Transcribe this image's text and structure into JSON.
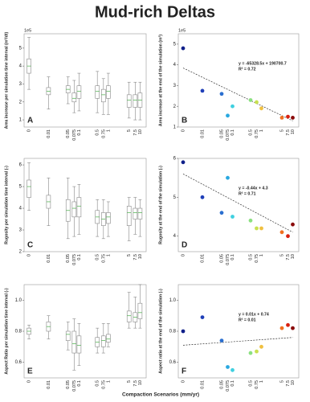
{
  "title": "Mud-rich Deltas",
  "xlabel": "Compaction Scenarios (mm/yr)",
  "chart_data": [
    {
      "type": "box",
      "panel_label": "A",
      "ylabel": "Area increase per simulation time interval (m²/dt)",
      "offset_text": "1e5",
      "categories": [
        "0",
        "0.01",
        "0.05",
        "0.075",
        "0.1",
        "0.5",
        "0.75",
        "1",
        "5",
        "7.5",
        "10"
      ],
      "ylim": [
        0.6,
        5.8
      ],
      "yticks": [
        1,
        2,
        3,
        4,
        5
      ],
      "boxes": [
        [
          2.7,
          3.6,
          4.0,
          4.4,
          5.6
        ],
        [
          1.6,
          2.4,
          2.6,
          2.8,
          3.4
        ],
        [
          1.9,
          2.5,
          2.7,
          2.9,
          3.4
        ],
        [
          1.4,
          2.0,
          2.2,
          2.5,
          3.2
        ],
        [
          1.5,
          2.2,
          2.6,
          2.9,
          3.6
        ],
        [
          1.4,
          2.2,
          2.6,
          2.9,
          3.7
        ],
        [
          1.3,
          2.0,
          2.4,
          2.7,
          3.3
        ],
        [
          1.3,
          2.2,
          2.6,
          2.9,
          3.6
        ],
        [
          1.1,
          1.7,
          2.1,
          2.4,
          3.1
        ],
        [
          1.0,
          1.7,
          2.1,
          2.4,
          3.1
        ],
        [
          1.0,
          1.7,
          2.1,
          2.5,
          3.1
        ]
      ]
    },
    {
      "type": "scatter",
      "panel_label": "B",
      "ylabel": "Area increase at the end of the simulation (m²)",
      "offset_text": "1e5",
      "categories": [
        "0",
        "0.01",
        "0.05",
        "0.075",
        "0.1",
        "0.5",
        "0.75",
        "1",
        "5",
        "7.5",
        "10"
      ],
      "ylim": [
        1,
        5.5
      ],
      "yticks": [
        1,
        2,
        3,
        4,
        5
      ],
      "values": [
        4.8,
        2.75,
        2.6,
        1.55,
        2.0,
        2.3,
        2.2,
        1.9,
        1.45,
        1.5,
        1.45
      ],
      "colors": [
        "#10208a",
        "#1f3fb8",
        "#2a6fd0",
        "#29a8e0",
        "#3fd0e0",
        "#8be080",
        "#c8e050",
        "#f0c040",
        "#f07020",
        "#d82010",
        "#8a0a0a"
      ],
      "trendline": {
        "start": 3.85,
        "end": 1.3
      },
      "equation": "y = -65328.5x + 190700.7",
      "r2": "R² = 0.72"
    },
    {
      "type": "box",
      "panel_label": "C",
      "ylabel": "Rugosity per simulation time interval (-)",
      "categories": [
        "0",
        "0.01",
        "0.05",
        "0.075",
        "0.1",
        "0.5",
        "0.75",
        "1",
        "5",
        "7.5",
        "10"
      ],
      "ylim": [
        2,
        6.3
      ],
      "yticks": [
        2,
        3,
        4,
        5,
        6
      ],
      "boxes": [
        [
          3.9,
          4.5,
          5.0,
          5.3,
          6.1
        ],
        [
          3.2,
          4.0,
          4.3,
          4.6,
          5.4
        ],
        [
          2.6,
          3.4,
          3.9,
          4.4,
          5.4
        ],
        [
          2.7,
          3.6,
          4.0,
          4.3,
          5.0
        ],
        [
          2.8,
          3.6,
          4.1,
          4.5,
          5.1
        ],
        [
          2.7,
          3.3,
          3.6,
          3.9,
          4.4
        ],
        [
          2.6,
          3.2,
          3.5,
          3.8,
          4.4
        ],
        [
          2.7,
          3.3,
          3.6,
          3.8,
          4.3
        ],
        [
          2.5,
          3.2,
          3.8,
          4.1,
          4.5
        ],
        [
          2.8,
          3.5,
          3.8,
          4.0,
          4.5
        ],
        [
          2.7,
          3.5,
          3.8,
          4.0,
          4.4
        ]
      ]
    },
    {
      "type": "scatter",
      "panel_label": "D",
      "ylabel": "Rugosity at the end of the simulation (-)",
      "categories": [
        "0",
        "0.01",
        "0.05",
        "0.075",
        "0.1",
        "0.5",
        "0.75",
        "1",
        "5",
        "7.5",
        "10"
      ],
      "ylim": [
        3.6,
        6.0
      ],
      "yticks": [
        4,
        5,
        6
      ],
      "values": [
        5.9,
        5.0,
        4.6,
        5.5,
        4.5,
        4.4,
        4.2,
        4.2,
        4.1,
        4.0,
        4.3
      ],
      "colors": [
        "#10208a",
        "#1f3fb8",
        "#2a6fd0",
        "#29a8e0",
        "#3fd0e0",
        "#8be080",
        "#c8e050",
        "#f0c040",
        "#f07020",
        "#d82010",
        "#8a0a0a"
      ],
      "trendline": {
        "start": 5.6,
        "end": 4.1
      },
      "equation": "y = -0.44x + 4.3",
      "r2": "R² = 0.71"
    },
    {
      "type": "box",
      "panel_label": "E",
      "ylabel": "Aspect Ratio per simulation time interval (-)",
      "categories": [
        "0",
        "0.01",
        "0.05",
        "0.075",
        "0.1",
        "0.5",
        "0.75",
        "1",
        "5",
        "7.5",
        "10"
      ],
      "ylim": [
        0.5,
        1.1
      ],
      "yticks": [
        0.6,
        0.8,
        {
          "value": 1,
          "label": "1.0"
        }
      ],
      "boxes": [
        [
          0.75,
          0.78,
          0.8,
          0.82,
          0.84
        ],
        [
          0.75,
          0.8,
          0.83,
          0.86,
          0.9
        ],
        [
          0.68,
          0.74,
          0.78,
          0.8,
          0.86
        ],
        [
          0.55,
          0.66,
          0.72,
          0.8,
          0.88
        ],
        [
          0.58,
          0.66,
          0.71,
          0.77,
          0.85
        ],
        [
          0.66,
          0.7,
          0.73,
          0.76,
          0.82
        ],
        [
          0.66,
          0.7,
          0.74,
          0.77,
          0.85
        ],
        [
          0.7,
          0.73,
          0.75,
          0.78,
          0.85
        ],
        [
          0.82,
          0.86,
          0.9,
          0.93,
          1.05
        ],
        [
          0.82,
          0.86,
          0.89,
          0.92,
          1.02
        ],
        [
          0.82,
          0.88,
          0.92,
          0.98,
          1.1
        ]
      ]
    },
    {
      "type": "scatter",
      "panel_label": "F",
      "ylabel": "Aspect ratio at the end of the simulation (-)",
      "categories": [
        "0",
        "0.01",
        "0.05",
        "0.075",
        "0.1",
        "0.5",
        "0.75",
        "1",
        "5",
        "7.5",
        "10"
      ],
      "ylim": [
        0.5,
        1.1
      ],
      "yticks": [
        0.6,
        0.8,
        {
          "value": 1,
          "label": "1.0"
        }
      ],
      "values": [
        0.8,
        0.89,
        0.74,
        0.57,
        0.55,
        0.66,
        0.67,
        0.7,
        0.82,
        0.84,
        0.82
      ],
      "colors": [
        "#10208a",
        "#1f3fb8",
        "#2a6fd0",
        "#29a8e0",
        "#3fd0e0",
        "#8be080",
        "#c8e050",
        "#f0c040",
        "#f07020",
        "#d82010",
        "#8a0a0a"
      ],
      "trendline": {
        "start": 0.71,
        "end": 0.76
      },
      "equation": "y = 0.01x + 0.74",
      "r2": "R² = 0.01"
    }
  ]
}
